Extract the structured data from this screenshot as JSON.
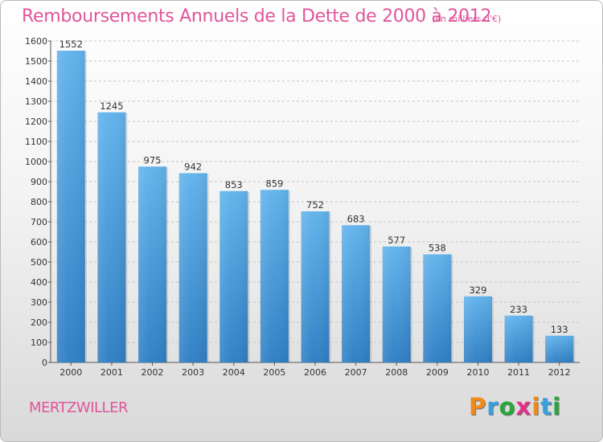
{
  "chart_data": {
    "type": "bar",
    "title": "Remboursements Annuels de la Dette de 2000 à 2012",
    "subtitle": "(en milliers d'€)",
    "categories": [
      "2000",
      "2001",
      "2002",
      "2003",
      "2004",
      "2005",
      "2006",
      "2007",
      "2008",
      "2009",
      "2010",
      "2011",
      "2012"
    ],
    "values": [
      1552,
      1245,
      975,
      942,
      853,
      859,
      752,
      683,
      577,
      538,
      329,
      233,
      133
    ],
    "data_labels": [
      "1552",
      "1245",
      "975",
      "942",
      "853",
      "859",
      "752",
      "683",
      "577",
      "538",
      "329",
      "233",
      "133"
    ],
    "y_ticks": [
      0,
      100,
      200,
      300,
      400,
      500,
      600,
      700,
      800,
      900,
      1000,
      1100,
      1200,
      1300,
      1400,
      1500,
      1600
    ],
    "ylim": [
      0,
      1600
    ],
    "grid": "horizontal-dashed",
    "bar_color": "#3a8fd8",
    "title_color": "#e0559a"
  },
  "footer": {
    "commune": "MERTZWILLER",
    "logo_text": "Proxiti",
    "logo_colors": [
      "#f08a1c",
      "#3aa0dc",
      "#2aa63c",
      "#e4328a",
      "#f08a1c",
      "#3aa0dc",
      "#2aa63c"
    ]
  }
}
